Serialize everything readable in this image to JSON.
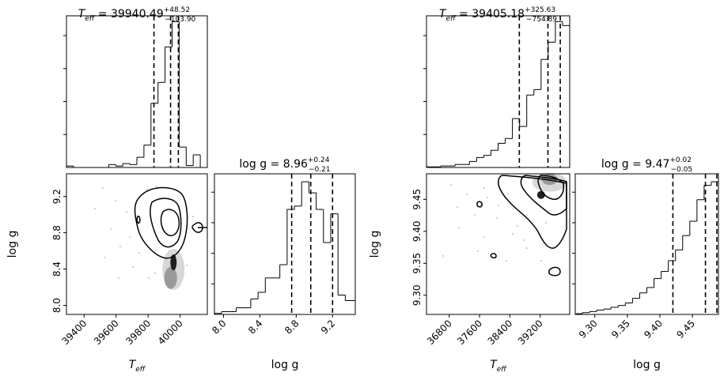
{
  "chart_data": [
    {
      "type": "corner",
      "panels": {
        "teff_hist": {
          "title": {
            "symbol": "T",
            "sub": "eff",
            "median": "39940.49",
            "plus": "+48.52",
            "minus": "−103.90"
          },
          "xlim": [
            39290,
            40170
          ],
          "bins_x": [
            39290,
            39334,
            39378,
            39422,
            39466,
            39510,
            39554,
            39598,
            39642,
            39686,
            39730,
            39774,
            39818,
            39862,
            39906,
            39950,
            39994,
            40038,
            40082,
            40126,
            40170
          ],
          "counts": [
            0.3,
            0.0,
            0.0,
            0.0,
            0.0,
            0.0,
            0.6,
            0.3,
            0.8,
            0.6,
            2.1,
            4.6,
            13.2,
            17.5,
            24.8,
            30.0,
            4.2,
            0.4,
            2.6,
            0.0
          ],
          "quantiles": [
            39836.59,
            39940.49,
            39989.01
          ]
        },
        "teff_logg": {
          "xlim": [
            39290,
            40170
          ],
          "ylim": [
            7.9,
            9.45
          ],
          "xticks": [
            39400,
            39600,
            39800,
            40000
          ],
          "yticks": [
            8.0,
            8.4,
            8.8,
            9.2
          ],
          "xlabel": {
            "symbol": "T",
            "sub": "eff"
          },
          "ylabel": "log g"
        },
        "logg_hist": {
          "title": {
            "prefix": "log g = ",
            "median": "8.96",
            "plus": "+0.24",
            "minus": "−0.21"
          },
          "xlim": [
            7.9,
            9.45
          ],
          "xticks": [
            8.0,
            8.4,
            8.8,
            9.2
          ],
          "xlabel": "log g",
          "bins_x": [
            7.9,
            7.98,
            8.06,
            8.14,
            8.22,
            8.3,
            8.38,
            8.46,
            8.54,
            8.62,
            8.7,
            8.78,
            8.86,
            8.94,
            9.02,
            9.1,
            9.18,
            9.26,
            9.34,
            9.42,
            9.45
          ],
          "counts": [
            0.2,
            0.5,
            0.5,
            1.2,
            1.2,
            2.8,
            4.0,
            6.6,
            6.6,
            9.0,
            19.0,
            19.6,
            24.0,
            22.0,
            19.0,
            13.0,
            18.2,
            3.5,
            2.5,
            2.5
          ],
          "quantiles": [
            8.75,
            8.96,
            9.2
          ]
        }
      }
    },
    {
      "type": "corner",
      "panels": {
        "teff_hist": {
          "title": {
            "symbol": "T",
            "sub": "eff",
            "median": "39405.18",
            "plus": "+325.63",
            "minus": "−754.89"
          },
          "xlim": [
            36200,
            39980
          ],
          "bins_x": [
            36200,
            36389,
            36578,
            36767,
            36956,
            37145,
            37334,
            37523,
            37712,
            37901,
            38090,
            38279,
            38468,
            38657,
            38846,
            39035,
            39224,
            39413,
            39602,
            39791,
            39980
          ],
          "counts": [
            0.2,
            0.2,
            0.5,
            0.5,
            1.0,
            1.0,
            2.0,
            3.3,
            4.0,
            5.7,
            8.0,
            9.6,
            16.2,
            13.6,
            24.0,
            25.8,
            35.8,
            41.5,
            48.3,
            47.0
          ],
          "quantiles": [
            38650.29,
            39405.18,
            39730.81
          ]
        },
        "teff_logg": {
          "xlim": [
            36200,
            39980
          ],
          "ylim": [
            9.27,
            9.49
          ],
          "xticks": [
            36800,
            37600,
            38400,
            39200
          ],
          "yticks": [
            9.3,
            9.35,
            9.4,
            9.45
          ],
          "xlabel": {
            "symbol": "T",
            "sub": "eff"
          },
          "ylabel": "log g"
        },
        "logg_hist": {
          "title": {
            "prefix": "log g = ",
            "median": "9.47",
            "plus": "+0.02",
            "minus": "−0.05"
          },
          "xlim": [
            9.27,
            9.49
          ],
          "xticks": [
            9.3,
            9.35,
            9.4,
            9.45
          ],
          "xlabel": "log g",
          "bins_x": [
            9.27,
            9.281,
            9.292,
            9.303,
            9.314,
            9.325,
            9.336,
            9.347,
            9.358,
            9.369,
            9.38,
            9.391,
            9.402,
            9.413,
            9.424,
            9.435,
            9.446,
            9.457,
            9.468,
            9.479,
            9.49
          ],
          "counts": [
            0.2,
            0.5,
            0.8,
            1.2,
            1.5,
            2.0,
            2.5,
            3.2,
            4.5,
            6.0,
            7.5,
            10.0,
            12.0,
            15.0,
            18.0,
            22.0,
            26.0,
            32.0,
            36.0,
            37.0
          ],
          "quantiles": [
            9.42,
            9.47,
            9.49
          ]
        }
      }
    }
  ]
}
